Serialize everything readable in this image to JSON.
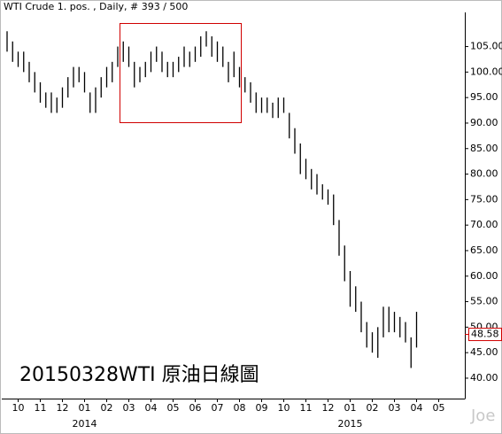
{
  "chart_data": {
    "type": "ohlc",
    "title": "WTI Crude 1. pos. , Daily, # 393 / 500",
    "annotation": "20150328WTI 原油日線圖",
    "watermark": "Joe",
    "color": "#000000",
    "categories": [
      null,
      null,
      "10",
      null,
      null,
      null,
      "11",
      null,
      null,
      null,
      "12",
      null,
      null,
      null,
      "01",
      null,
      null,
      null,
      "02",
      null,
      null,
      null,
      "03",
      null,
      null,
      null,
      "04",
      null,
      null,
      null,
      "05",
      null,
      null,
      null,
      "06",
      null,
      null,
      null,
      "07",
      null,
      null,
      null,
      "08",
      null,
      null,
      null,
      "09",
      null,
      null,
      null,
      "10",
      null,
      null,
      null,
      "11",
      null,
      null,
      null,
      "12",
      null,
      null,
      null,
      "01",
      null,
      null,
      null,
      "02",
      null,
      null,
      null,
      "03",
      null,
      null,
      null,
      "04",
      null,
      null,
      null,
      "05",
      null
    ],
    "years": [
      null,
      null,
      null,
      null,
      null,
      null,
      null,
      null,
      null,
      null,
      null,
      null,
      null,
      null,
      "2014",
      null,
      null,
      null,
      null,
      null,
      null,
      null,
      null,
      null,
      null,
      null,
      null,
      null,
      null,
      null,
      null,
      null,
      null,
      null,
      null,
      null,
      null,
      null,
      null,
      null,
      null,
      null,
      null,
      null,
      null,
      null,
      null,
      null,
      null,
      null,
      null,
      null,
      null,
      null,
      null,
      null,
      null,
      null,
      null,
      null,
      null,
      null,
      "2015",
      null,
      null,
      null,
      null,
      null,
      null,
      null,
      null,
      null,
      null,
      null,
      null,
      null,
      null,
      null,
      null,
      null
    ],
    "high": [
      108,
      106,
      104,
      104,
      102,
      100,
      98,
      96,
      96,
      95,
      97,
      99,
      101,
      101,
      100,
      96,
      97,
      99,
      101,
      102,
      105,
      106,
      105,
      102,
      101,
      102,
      104,
      105,
      104,
      102,
      102,
      103,
      105,
      104,
      105,
      107,
      108,
      107,
      106,
      105,
      102,
      104,
      101,
      99,
      98,
      96,
      95,
      95,
      94,
      95,
      95,
      92,
      89,
      86,
      83,
      81,
      80,
      78,
      77,
      76,
      71,
      66,
      61,
      58,
      55,
      51,
      49,
      50,
      54,
      54,
      53,
      52,
      51,
      48,
      53,
      null,
      null,
      null,
      null,
      null
    ],
    "low": [
      104,
      102,
      101,
      100,
      98,
      96,
      94,
      93,
      92,
      92,
      93,
      95,
      97,
      98,
      96,
      92,
      92,
      95,
      97,
      98,
      101,
      102,
      101,
      97,
      98,
      99,
      100,
      102,
      100,
      99,
      99,
      100,
      101,
      101,
      102,
      103,
      105,
      103,
      102,
      101,
      98,
      99,
      97,
      96,
      94,
      92,
      92,
      92,
      91,
      91,
      92,
      87,
      84,
      80,
      79,
      77,
      76,
      75,
      74,
      70,
      64,
      59,
      54,
      53,
      49,
      46,
      45,
      44,
      48,
      49,
      49,
      48,
      47,
      42,
      46,
      null,
      null,
      null,
      null,
      null
    ],
    "last_price": 48.58,
    "ylim": [
      36,
      111
    ],
    "yticks": [
      {
        "value": 40,
        "label": "40.00"
      },
      {
        "value": 45,
        "label": "45.00"
      },
      {
        "value": 50,
        "label": "50.00"
      },
      {
        "value": 55,
        "label": "55.00"
      },
      {
        "value": 60,
        "label": "60.00"
      },
      {
        "value": 65,
        "label": "65.00"
      },
      {
        "value": 70,
        "label": "70.00"
      },
      {
        "value": 75,
        "label": "75.00"
      },
      {
        "value": 80,
        "label": "80.00"
      },
      {
        "value": 85,
        "label": "85.00"
      },
      {
        "value": 90,
        "label": "90.00"
      },
      {
        "value": 95,
        "label": "95.00"
      },
      {
        "value": 100,
        "label": "100.00"
      },
      {
        "value": 105,
        "label": "105.00"
      }
    ]
  }
}
